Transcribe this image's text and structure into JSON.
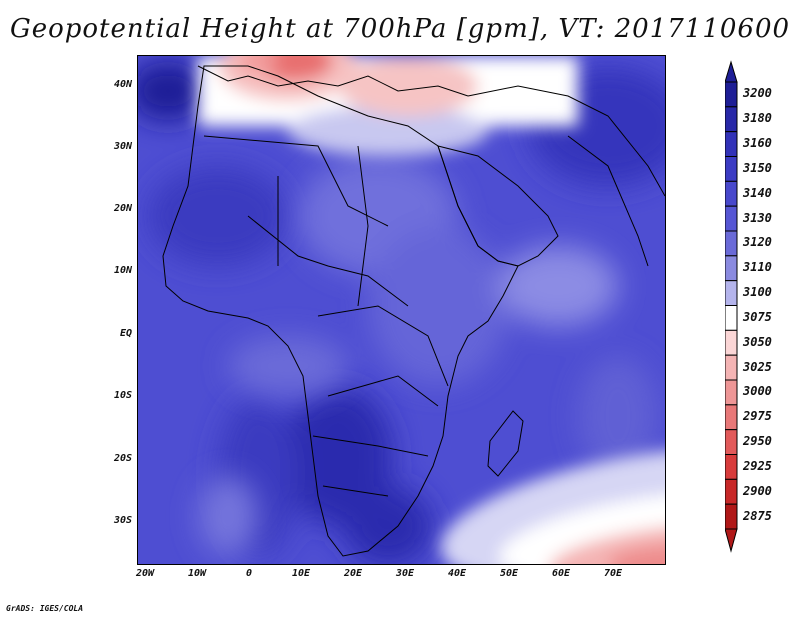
{
  "title": "Geopotential Height at 700hPa [gpm], VT: 2017110600",
  "credit": "GrADS: IGES/COLA",
  "lat_labels": [
    "40N",
    "30N",
    "20N",
    "10N",
    "EQ",
    "10S",
    "20S",
    "30S"
  ],
  "lon_labels": [
    "20W",
    "10W",
    "0",
    "10E",
    "20E",
    "30E",
    "40E",
    "50E",
    "60E",
    "70E"
  ],
  "colorbar": {
    "levels": [
      "3200",
      "3180",
      "3160",
      "3150",
      "3140",
      "3130",
      "3120",
      "3110",
      "3100",
      "3075",
      "3050",
      "3025",
      "3000",
      "2975",
      "2950",
      "2925",
      "2900",
      "2875"
    ],
    "colors": [
      "#1e1e96",
      "#2828a8",
      "#3232b8",
      "#3c3cc4",
      "#4848cc",
      "#5656d4",
      "#6a6ad8",
      "#8a8ae0",
      "#b4b4ec",
      "#ffffff",
      "#fbd6d6",
      "#f4b4b4",
      "#ee9696",
      "#e87878",
      "#e25a5a",
      "#d83c3c",
      "#c82828",
      "#b01818"
    ]
  }
}
